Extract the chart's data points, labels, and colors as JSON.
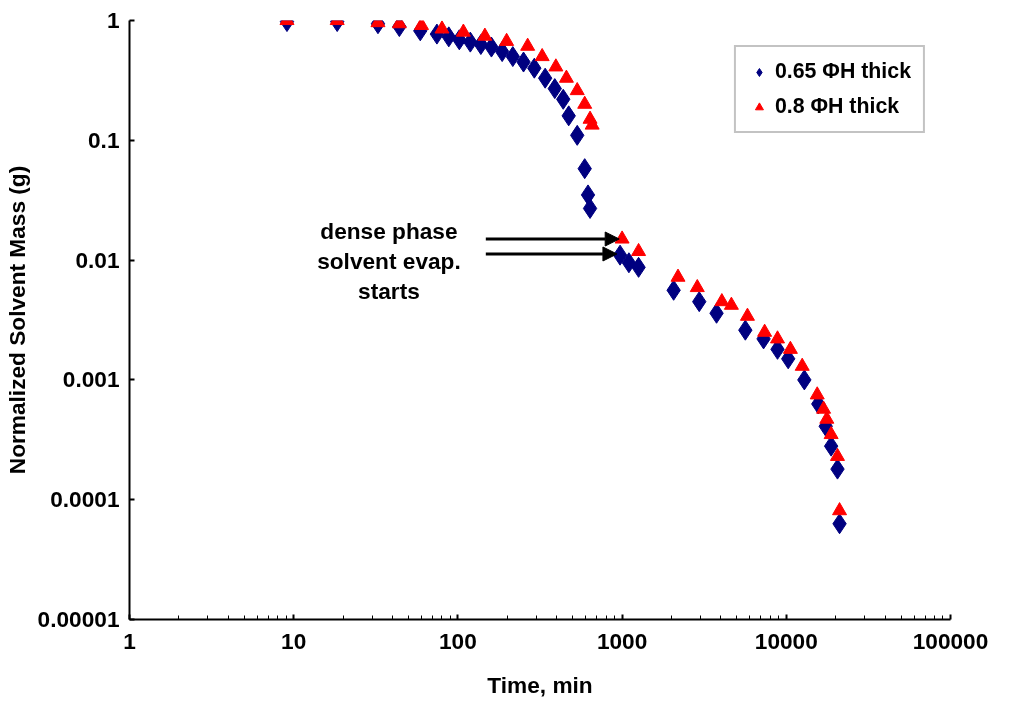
{
  "chart_data": {
    "type": "scatter",
    "xlabel": "Time, min",
    "ylabel": "Normalized Solvent Mass (g)",
    "log": "xy",
    "xlim": [
      1,
      100000
    ],
    "ylim": [
      1e-05,
      1
    ],
    "xticks": [
      1,
      10,
      100,
      1000,
      10000,
      100000
    ],
    "yticks": [
      {
        "value": 1e-05,
        "label": "0.00001"
      },
      {
        "value": 0.0001,
        "label": "0.0001"
      },
      {
        "value": 0.001,
        "label": "0.001"
      },
      {
        "value": 0.01,
        "label": "0.01"
      },
      {
        "value": 0.1,
        "label": "0.1"
      },
      {
        "value": 1,
        "label": "1"
      }
    ],
    "grid": false,
    "legend": "top right",
    "annotations": [
      {
        "text": "dense phase\nsolvent evap.\nstarts",
        "x": 1000,
        "y": 0.015
      }
    ],
    "series": [
      {
        "name": "0.65 ΦH thick",
        "color": "#000080",
        "marker": "diamond",
        "x": [
          9.1,
          18.4,
          32.6,
          44,
          59,
          74.5,
          88,
          102,
          119,
          138,
          160,
          186,
          216,
          251,
          292,
          340,
          389,
          438,
          473,
          533,
          592,
          620,
          638,
          972,
          1100,
          1260,
          2060,
          2950,
          3760,
          5630,
          7270,
          8840,
          10270,
          12880,
          15660,
          17380,
          18750,
          20500,
          21100
        ],
        "values": [
          0.98,
          0.98,
          0.94,
          0.89,
          0.82,
          0.77,
          0.73,
          0.69,
          0.66,
          0.63,
          0.6,
          0.55,
          0.5,
          0.45,
          0.4,
          0.33,
          0.27,
          0.22,
          0.16,
          0.11,
          0.058,
          0.035,
          0.027,
          0.011,
          0.0095,
          0.0087,
          0.0056,
          0.0045,
          0.0036,
          0.0026,
          0.0022,
          0.0018,
          0.0015,
          0.001,
          0.00063,
          0.00041,
          0.00028,
          0.00018,
          6.3e-05
        ]
      },
      {
        "name": "0.8 ΦH thick",
        "color": "#ff0000",
        "marker": "triangle",
        "x": [
          9.1,
          18.4,
          32.6,
          44,
          60,
          80,
          108,
          146,
          198,
          266,
          326,
          395,
          458,
          533,
          592,
          638,
          657,
          1000,
          1260,
          2190,
          2870,
          4050,
          4630,
          5800,
          7380,
          8840,
          10590,
          12500,
          15430,
          16870,
          17650,
          18750,
          20500,
          21100
        ],
        "values": [
          1.0,
          1.0,
          0.96,
          0.94,
          0.91,
          0.85,
          0.8,
          0.74,
          0.67,
          0.61,
          0.5,
          0.41,
          0.33,
          0.26,
          0.2,
          0.15,
          0.134,
          0.015,
          0.0118,
          0.0072,
          0.0059,
          0.0045,
          0.0042,
          0.0034,
          0.0025,
          0.0022,
          0.0018,
          0.0013,
          0.00075,
          0.00057,
          0.00047,
          0.00035,
          0.00023,
          8.1e-05
        ]
      }
    ]
  }
}
